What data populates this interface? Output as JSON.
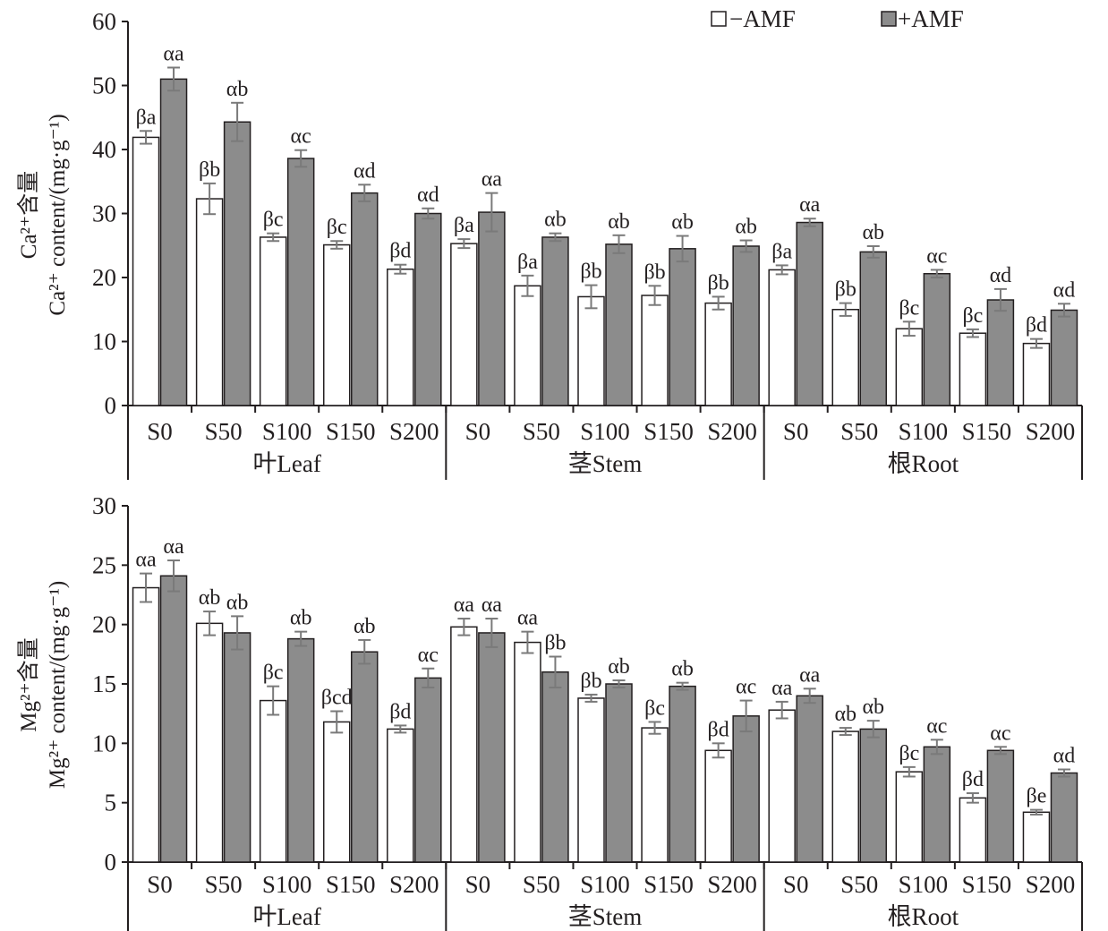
{
  "legend": [
    {
      "name": "−AMF",
      "color": "#ffffff"
    },
    {
      "name": "+AMF",
      "color": "#8c8c8c"
    }
  ],
  "colors": {
    "axis": "#231f20",
    "minus_fill": "#ffffff",
    "plus_fill": "#8c8c8c",
    "error_bar": "#7a7a7a"
  },
  "chart_data": [
    {
      "type": "bar",
      "id": "ca",
      "ylabel_cn": "Ca²⁺含量",
      "ylabel_en": "Ca²⁺ content/(mg·g⁻¹)",
      "ylim": [
        0,
        60
      ],
      "yticks": [
        0,
        10,
        20,
        30,
        40,
        50,
        60
      ],
      "groups": [
        "叶Leaf",
        "茎Stem",
        "根Root"
      ],
      "categories": [
        "S0",
        "S50",
        "S100",
        "S150",
        "S200"
      ],
      "series": [
        {
          "name": "−AMF",
          "values": [
            [
              41.9,
              32.3,
              26.3,
              25.1,
              21.3
            ],
            [
              25.3,
              18.7,
              17.0,
              17.2,
              16.0
            ],
            [
              21.2,
              15.0,
              12.0,
              11.3,
              9.7
            ]
          ],
          "errors": [
            [
              1.0,
              2.4,
              0.6,
              0.6,
              0.7
            ],
            [
              0.7,
              1.6,
              1.8,
              1.5,
              1.0
            ],
            [
              0.7,
              1.0,
              1.1,
              0.6,
              0.7
            ]
          ],
          "labels": [
            [
              "βa",
              "βb",
              "βc",
              "βc",
              "βd"
            ],
            [
              "βa",
              "βa",
              "βb",
              "βb",
              "βb"
            ],
            [
              "βa",
              "βb",
              "βc",
              "βc",
              "βd"
            ]
          ]
        },
        {
          "name": "+AMF",
          "values": [
            [
              51.0,
              44.3,
              38.6,
              33.2,
              30.0
            ],
            [
              30.2,
              26.3,
              25.2,
              24.5,
              24.9
            ],
            [
              28.6,
              24.0,
              20.6,
              16.5,
              14.9
            ]
          ],
          "errors": [
            [
              1.8,
              3.0,
              1.3,
              1.3,
              0.8
            ],
            [
              3.0,
              0.6,
              1.4,
              2.0,
              0.9
            ],
            [
              0.6,
              0.9,
              0.6,
              1.7,
              1.0
            ]
          ],
          "labels": [
            [
              "αa",
              "αb",
              "αc",
              "αd",
              "αd"
            ],
            [
              "αa",
              "αb",
              "αb",
              "αb",
              "αb"
            ],
            [
              "αa",
              "αb",
              "αc",
              "αd",
              "αd"
            ]
          ]
        }
      ]
    },
    {
      "type": "bar",
      "id": "mg",
      "ylabel_cn": "Mg²⁺含量",
      "ylabel_en": "Mg²⁺ content/(mg·g⁻¹)",
      "ylim": [
        0,
        30
      ],
      "yticks": [
        0,
        5,
        10,
        15,
        20,
        25,
        30
      ],
      "groups": [
        "叶Leaf",
        "茎Stem",
        "根Root"
      ],
      "categories": [
        "S0",
        "S50",
        "S100",
        "S150",
        "S200"
      ],
      "series": [
        {
          "name": "−AMF",
          "values": [
            [
              23.1,
              20.1,
              13.6,
              11.8,
              11.2
            ],
            [
              19.8,
              18.5,
              13.8,
              11.3,
              9.4
            ],
            [
              12.8,
              11.0,
              7.6,
              5.4,
              4.2
            ]
          ],
          "errors": [
            [
              1.2,
              1.0,
              1.2,
              0.9,
              0.3
            ],
            [
              0.7,
              0.9,
              0.3,
              0.5,
              0.6
            ],
            [
              0.7,
              0.3,
              0.4,
              0.4,
              0.2
            ]
          ],
          "labels": [
            [
              "αa",
              "αb",
              "βc",
              "βcd",
              "βd"
            ],
            [
              "αa",
              "αa",
              "βb",
              "βc",
              "βd"
            ],
            [
              "αa",
              "αb",
              "βc",
              "βd",
              "βe"
            ]
          ]
        },
        {
          "name": "+AMF",
          "values": [
            [
              24.1,
              19.3,
              18.8,
              17.7,
              15.5
            ],
            [
              19.3,
              16.0,
              15.0,
              14.8,
              12.3
            ],
            [
              14.0,
              11.2,
              9.7,
              9.4,
              7.5
            ]
          ],
          "errors": [
            [
              1.3,
              1.4,
              0.6,
              1.0,
              0.8
            ],
            [
              1.2,
              1.3,
              0.3,
              0.3,
              1.3
            ],
            [
              0.6,
              0.7,
              0.6,
              0.3,
              0.3
            ]
          ],
          "labels": [
            [
              "αa",
              "αb",
              "αb",
              "αb",
              "αc"
            ],
            [
              "αa",
              "βb",
              "αb",
              "αb",
              "αc"
            ],
            [
              "αa",
              "αb",
              "αc",
              "αc",
              "αd"
            ]
          ]
        }
      ]
    }
  ]
}
